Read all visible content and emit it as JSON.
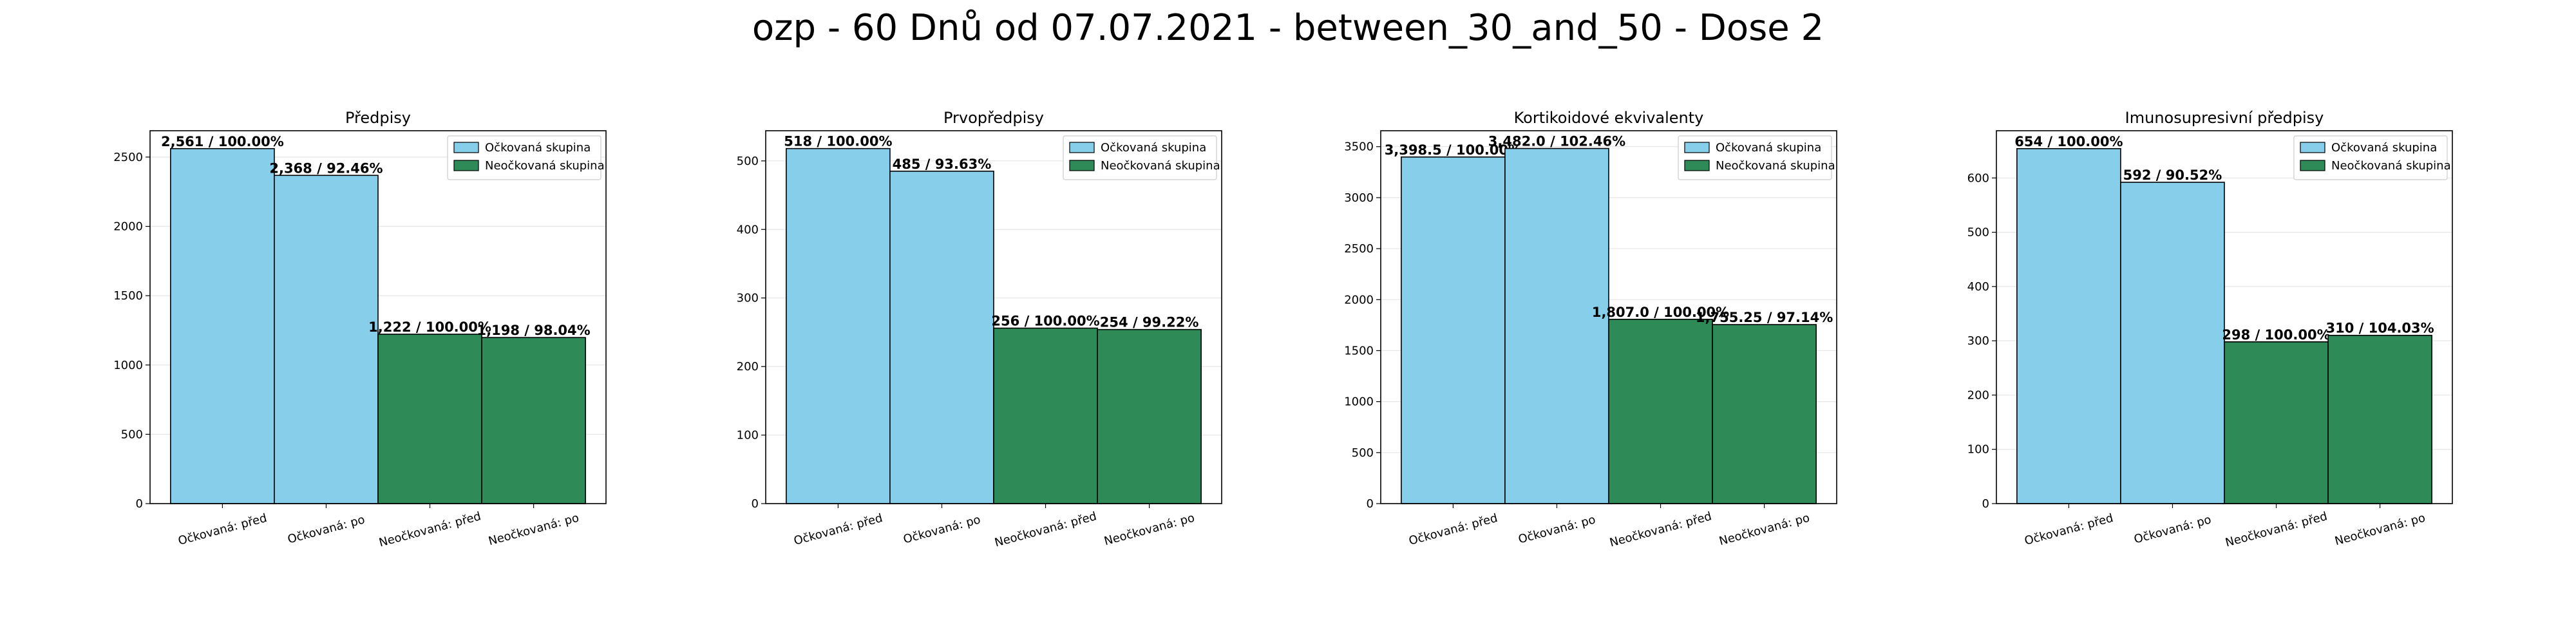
{
  "figure": {
    "title": "ozp - 60 Dnů od 07.07.2021 - between_30_and_50 - Dose 2"
  },
  "colors": {
    "vaccinated": "#87CEEB",
    "unvaccinated": "#2E8B57",
    "edge": "#000000",
    "grid": "#e6e6e6"
  },
  "chart_data": [
    {
      "type": "bar",
      "title": "Předpisy",
      "categories": [
        "Očkovaná: před",
        "Očkovaná: po",
        "Neočkovaná: před",
        "Neočkovaná: po"
      ],
      "values": [
        2561,
        2368,
        1222,
        1198
      ],
      "bar_labels": [
        "2,561 / 100.00%",
        "2,368 / 92.46%",
        "1,222 / 100.00%",
        "1,198 / 98.04%"
      ],
      "groups": [
        "vaccinated",
        "vaccinated",
        "unvaccinated",
        "unvaccinated"
      ],
      "ylim": [
        0,
        2690
      ],
      "yticks": [
        0,
        500,
        1000,
        1500,
        2000,
        2500
      ],
      "legend": [
        "Očkovaná skupina",
        "Neočkovaná skupina"
      ],
      "legend_position": "top-right",
      "grid": true
    },
    {
      "type": "bar",
      "title": "Prvopředpisy",
      "categories": [
        "Očkovaná: před",
        "Očkovaná: po",
        "Neočkovaná: před",
        "Neočkovaná: po"
      ],
      "values": [
        518,
        485,
        256,
        254
      ],
      "bar_labels": [
        "518 / 100.00%",
        "485 / 93.63%",
        "256 / 100.00%",
        "254 / 99.22%"
      ],
      "groups": [
        "vaccinated",
        "vaccinated",
        "unvaccinated",
        "unvaccinated"
      ],
      "ylim": [
        0,
        544
      ],
      "yticks": [
        0,
        100,
        200,
        300,
        400,
        500
      ],
      "legend": [
        "Očkovaná skupina",
        "Neočkovaná skupina"
      ],
      "legend_position": "top-right",
      "grid": true
    },
    {
      "type": "bar",
      "title": "Kortikoidové ekvivalenty",
      "categories": [
        "Očkovaná: před",
        "Očkovaná: po",
        "Neočkovaná: před",
        "Neočkovaná: po"
      ],
      "values": [
        3398.5,
        3482.0,
        1807.0,
        1755.25
      ],
      "bar_labels": [
        "3,398.5 / 100.00%",
        "3,482.0 / 102.46%",
        "1,807.0 / 100.00%",
        "1,755.25 / 97.14%"
      ],
      "groups": [
        "vaccinated",
        "vaccinated",
        "unvaccinated",
        "unvaccinated"
      ],
      "ylim": [
        0,
        3656
      ],
      "yticks": [
        0,
        500,
        1000,
        1500,
        2000,
        2500,
        3000,
        3500
      ],
      "legend": [
        "Očkovaná skupina",
        "Neočkovaná skupina"
      ],
      "legend_position": "top-right",
      "grid": true
    },
    {
      "type": "bar",
      "title": "Imunosupresivní předpisy",
      "categories": [
        "Očkovaná: před",
        "Očkovaná: po",
        "Neočkovaná: před",
        "Neočkovaná: po"
      ],
      "values": [
        654,
        592,
        298,
        310
      ],
      "bar_labels": [
        "654 / 100.00%",
        "592 / 90.52%",
        "298 / 100.00%",
        "310 / 104.03%"
      ],
      "groups": [
        "vaccinated",
        "vaccinated",
        "unvaccinated",
        "unvaccinated"
      ],
      "ylim": [
        0,
        687
      ],
      "yticks": [
        0,
        100,
        200,
        300,
        400,
        500,
        600
      ],
      "legend": [
        "Očkovaná skupina",
        "Neočkovaná skupina"
      ],
      "legend_position": "top-right",
      "grid": true
    }
  ]
}
